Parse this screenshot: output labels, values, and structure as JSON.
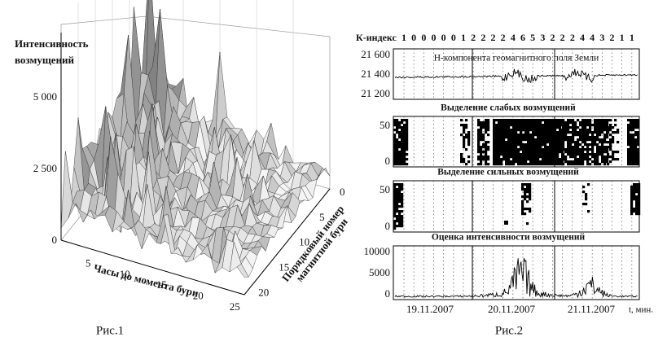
{
  "fig1": {
    "caption": "Рис.1",
    "z_label": [
      "Интенсивность",
      "возмущений"
    ],
    "z_ticks": [
      "5 000",
      "2 500",
      "0"
    ],
    "x_label": "Часы до момента бури",
    "x_ticks": [
      "5",
      "10",
      "15",
      "20",
      "25"
    ],
    "y_label": [
      "Порядковый номер",
      "магнитной бури"
    ],
    "y_ticks": [
      "0",
      "5",
      "10",
      "15",
      "20"
    ]
  },
  "fig2": {
    "caption": "Рис.2",
    "k_label": "К-индекс",
    "k_values": [
      1,
      0,
      0,
      0,
      0,
      0,
      1,
      2,
      2,
      2,
      2,
      4,
      6,
      5,
      3,
      2,
      2,
      2,
      4,
      4,
      3,
      2,
      1,
      1
    ],
    "panels": [
      {
        "title": "Н-компонента геомагнитного поля Земли",
        "yticks": [
          "21 600",
          "21 400",
          "21 200"
        ]
      },
      {
        "title": "Выделение слабых возмущений",
        "yticks": [
          "50",
          "0"
        ]
      },
      {
        "title": "Выделение сильных возмущений",
        "yticks": [
          "50",
          "0"
        ]
      },
      {
        "title": "Оценка интенсивности возмущений",
        "yticks": [
          "10000",
          "5000",
          "0"
        ]
      }
    ],
    "x_labels": [
      "19.11.2007",
      "20.11.2007",
      "21.11.2007"
    ],
    "x_unit": "t, мин."
  }
}
